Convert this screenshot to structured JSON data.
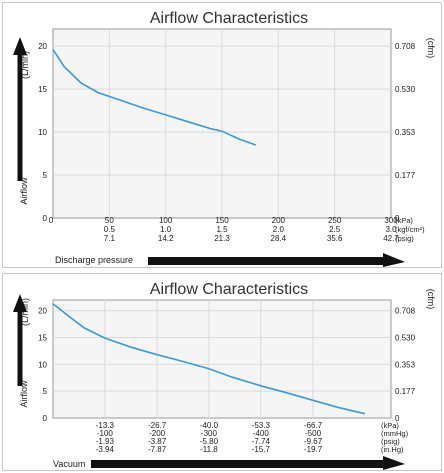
{
  "colors": {
    "curve": "#3a9ad9",
    "grid": "#d9d9d9",
    "plot_bg": "#f5f5f5",
    "frame": "#9a9a9a",
    "arrow": "#111111"
  },
  "chart_data": [
    {
      "type": "line",
      "title": "Airflow Characteristics",
      "ylabel": "Airflow",
      "left_unit": "(L/min)",
      "right_unit": "(cfm)",
      "xlabel": "Discharge pressure",
      "xlim": [
        0,
        300
      ],
      "ylim": [
        0,
        22
      ],
      "y_ticks": [
        "0",
        "5",
        "10",
        "15",
        "20"
      ],
      "y_ticks_right": [
        "0",
        "0.177",
        "0.353",
        "0.530",
        "0.708"
      ],
      "x_ticks": {
        "values": [
          50,
          100,
          150,
          200,
          250,
          300
        ],
        "rows": [
          [
            "50",
            "100",
            "150",
            "200",
            "250",
            "300"
          ],
          [
            "0.5",
            "1.0",
            "1.5",
            "2.0",
            "2.5",
            "3.0"
          ],
          [
            "7.1",
            "14.2",
            "21.3",
            "28.4",
            "35.6",
            "42.7"
          ]
        ],
        "units": [
          "(kPa)",
          "(kgf/cm²)",
          "(psig)"
        ]
      },
      "x_zero_label": "0",
      "grid": true,
      "series": [
        {
          "x": [
            0,
            10,
            25,
            40,
            60,
            80,
            100,
            120,
            140,
            150,
            165,
            180
          ],
          "values": [
            19.6,
            17.6,
            15.7,
            14.6,
            13.7,
            12.8,
            12.0,
            11.2,
            10.4,
            10.1,
            9.2,
            8.5
          ]
        }
      ]
    },
    {
      "type": "line",
      "title": "Airflow Characteristics",
      "ylabel": "Airflow",
      "left_unit": "(L/min)",
      "right_unit": "(cfm)",
      "xlabel": "Vacuum",
      "xlim": [
        0,
        -86.7
      ],
      "ylim": [
        0,
        22
      ],
      "y_ticks": [
        "0",
        "5",
        "10",
        "15",
        "20"
      ],
      "y_ticks_right": [
        "0",
        "0.177",
        "0.353",
        "0.530",
        "0.708"
      ],
      "x_ticks": {
        "values": [
          -13.3,
          -26.7,
          -40.0,
          -53.3,
          -66.7
        ],
        "rows": [
          [
            "-13.3",
            "-26.7",
            "-40.0",
            "-53.3",
            "-66.7"
          ],
          [
            "-100",
            "-200",
            "-300",
            "-400",
            "-500"
          ],
          [
            "-1.93",
            "-3.87",
            "-5.80",
            "-7.74",
            "-9.67"
          ],
          [
            "-3.94",
            "-7.87",
            "-11.8",
            "-15.7",
            "-19.7"
          ]
        ],
        "units": [
          "(kPa)",
          "(mmHg)",
          "(psig)",
          "(in.Hg)"
        ]
      },
      "grid": true,
      "series": [
        {
          "x": [
            0,
            -4,
            -8,
            -13.3,
            -20,
            -26.7,
            -33,
            -40,
            -46,
            -53.3,
            -60,
            -66.7,
            -73,
            -80
          ],
          "values": [
            21.3,
            19.0,
            16.8,
            14.9,
            13.2,
            11.8,
            10.6,
            9.2,
            7.6,
            6.0,
            4.7,
            3.3,
            2.0,
            0.8
          ]
        }
      ]
    }
  ]
}
